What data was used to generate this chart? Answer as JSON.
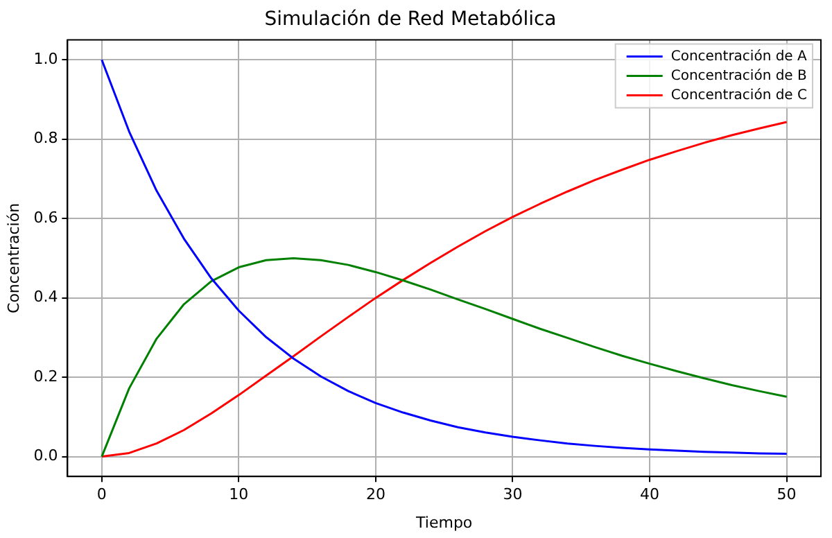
{
  "chart_data": {
    "type": "line",
    "title": "Simulación de Red Metabólica",
    "xlabel": "Tiempo",
    "ylabel": "Concentración",
    "x": [
      0,
      2,
      4,
      6,
      8,
      10,
      12,
      14,
      16,
      18,
      20,
      22,
      24,
      26,
      28,
      30,
      32,
      34,
      36,
      38,
      40,
      42,
      44,
      46,
      48,
      50
    ],
    "series": [
      {
        "name": "Concentración de A",
        "color": "#0000ff",
        "values": [
          1,
          0.819,
          0.67,
          0.549,
          0.449,
          0.368,
          0.301,
          0.247,
          0.202,
          0.165,
          0.135,
          0.111,
          0.091,
          0.074,
          0.061,
          0.05,
          0.041,
          0.033,
          0.027,
          0.022,
          0.018,
          0.015,
          0.012,
          0.01,
          0.008,
          0.007
        ]
      },
      {
        "name": "Concentración de B",
        "color": "#008000",
        "values": [
          0,
          0.172,
          0.297,
          0.384,
          0.442,
          0.477,
          0.495,
          0.5,
          0.495,
          0.483,
          0.465,
          0.444,
          0.421,
          0.396,
          0.372,
          0.347,
          0.322,
          0.299,
          0.276,
          0.254,
          0.234,
          0.215,
          0.197,
          0.18,
          0.165,
          0.151
        ]
      },
      {
        "name": "Concentración de C",
        "color": "#ff0000",
        "values": [
          0,
          0.009,
          0.033,
          0.067,
          0.109,
          0.155,
          0.204,
          0.253,
          0.303,
          0.352,
          0.4,
          0.445,
          0.488,
          0.529,
          0.568,
          0.604,
          0.637,
          0.668,
          0.697,
          0.723,
          0.748,
          0.77,
          0.791,
          0.81,
          0.827,
          0.843
        ]
      }
    ],
    "xlim": [
      -2.5,
      52.5
    ],
    "xticks": [
      0,
      10,
      20,
      30,
      40,
      50
    ],
    "ylim": [
      -0.05,
      1.05
    ],
    "yticks": [
      {
        "value": 0,
        "label": "0.0"
      },
      {
        "value": 0.2,
        "label": "0.2"
      },
      {
        "value": 0.4,
        "label": "0.4"
      },
      {
        "value": 0.6,
        "label": "0.6"
      },
      {
        "value": 0.8,
        "label": "0.8"
      },
      {
        "value": 1,
        "label": "1.0"
      }
    ],
    "grid": true,
    "legend": "top right",
    "line_style": "solid",
    "marker": "none"
  }
}
